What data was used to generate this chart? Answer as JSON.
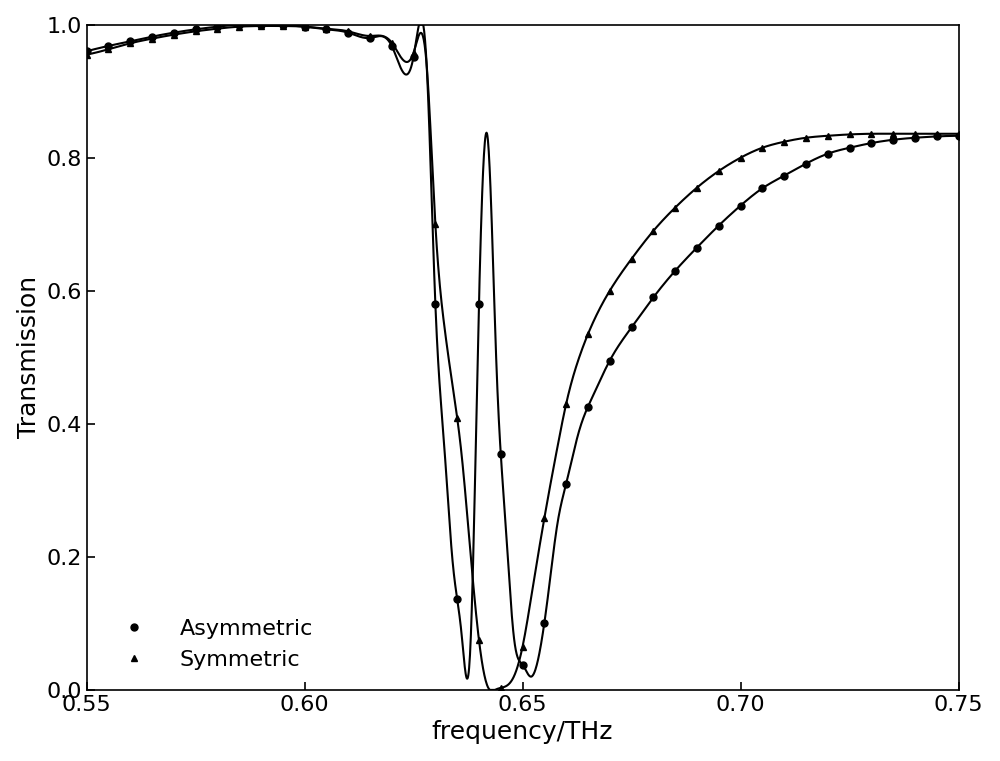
{
  "title": "",
  "xlabel": "frequency/THz",
  "ylabel": "Transmission",
  "xlim": [
    0.55,
    0.75
  ],
  "ylim": [
    0.0,
    1.0
  ],
  "xticks": [
    0.55,
    0.6,
    0.65,
    0.7,
    0.75
  ],
  "yticks": [
    0.0,
    0.2,
    0.4,
    0.6,
    0.8,
    1.0
  ],
  "legend_labels": [
    "Asymmetric",
    "Symmetric"
  ],
  "marker_circle": "o",
  "marker_triangle": "^",
  "line_color": "#000000",
  "figsize": [
    10.0,
    7.61
  ],
  "dpi": 100,
  "marker_size": 5,
  "linewidth": 1.5,
  "font_size_label": 18,
  "font_size_tick": 16,
  "font_size_legend": 16
}
